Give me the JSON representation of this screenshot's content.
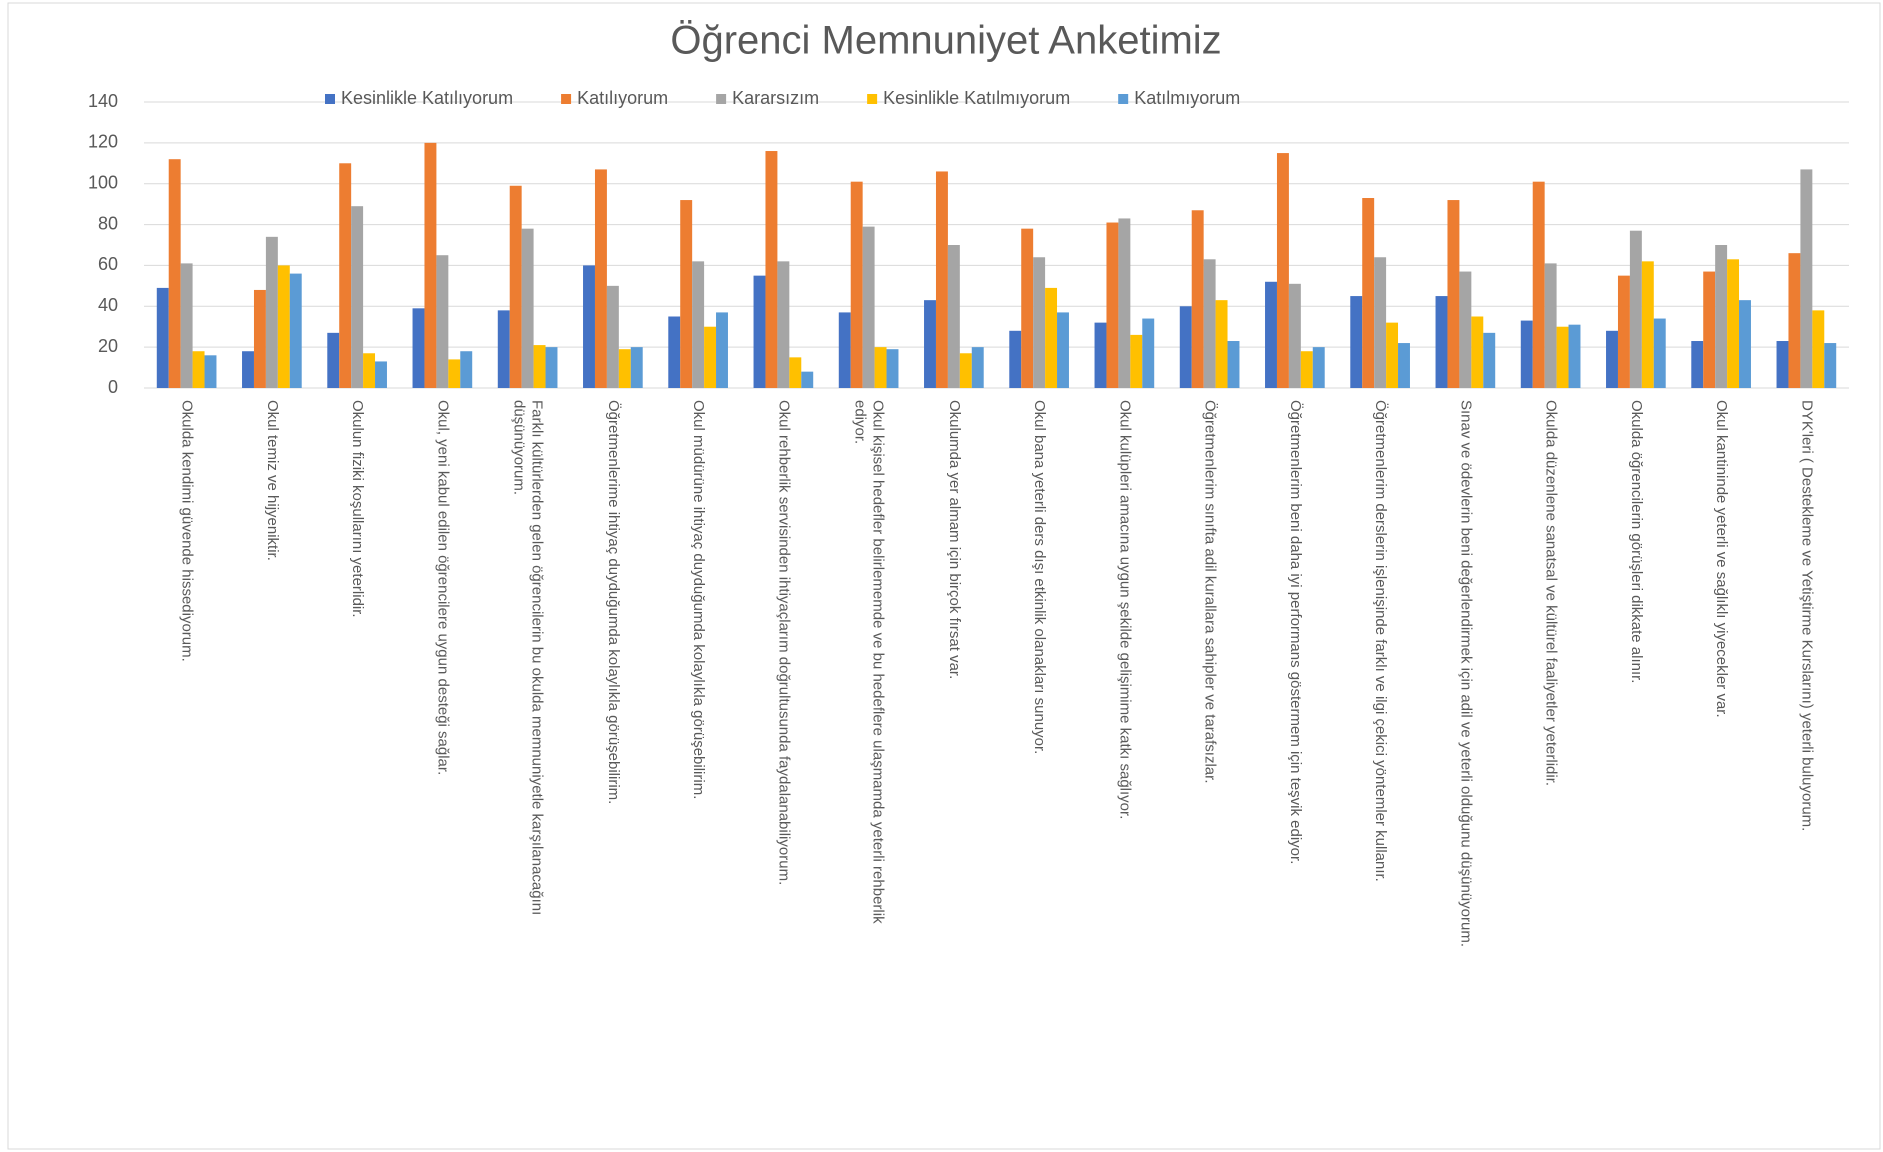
{
  "chart_data": {
    "type": "bar",
    "title": "Öğrenci Memnuniyet Anketimiz",
    "categories": [
      "Okulda kendimi güvende hissediyorum.",
      "Okul temiz ve hijyeniktir.",
      "Okulun fiziki koşullarını yeterlidir.",
      "Okul, yeni kabul edilen öğrencilere uygun desteği sağlar.",
      "Farklı kültürlerden gelen öğrencilerin bu okulda memnuniyetle karşılanacağını düşünüyorum.",
      "Öğretmenlerime ihtiyaç duyduğumda kolaylıkla görüşebilirim.",
      "Okul müdürüne ihtiyaç duyduğumda kolaylıkla görüşebilirim.",
      "Okul rehberlik servisinden ihtiyaçlarım doğrultusunda faydalanabiliyorum.",
      "Okul kişisel hedefler belirlememde ve bu hedeflere ulaşmamda yeterli rehberlik ediyor.",
      "Okulumda yer almam için birçok fırsat var.",
      "Okul bana yeterli ders dışı etkinlik olanakları sunuyor.",
      "Okul kulüpleri amacına uygun şekilde gelişimime katkı sağlıyor.",
      "Öğretmenlerim sınıfta adil kurallara sahipler ve tarafsızlar.",
      "Öğretmenlerim beni daha iyi performans göstermem için teşvik ediyor.",
      "Öğretmenlerim derslerin işlenişinde farklı ve ilgi çekici yöntemler kullanır.",
      "Sınav ve ödevlerin beni değerlendirmek için adil ve yeterli olduğunu düşünüyorum.",
      "Okulda düzenlene sanatsal ve kültürel faaliyetler yeterlidir.",
      "Okulda öğrencilerin görüşleri dikkate alınır.",
      "Okul kantininde yeterli ve sağlıklı yiyecekler var.",
      "DYK'leri ( Destekleme ve Yetiştirme Kurslarını) yeterli buluyorum."
    ],
    "series": [
      {
        "name": "Kesinlikle Katılıyorum",
        "color": "#4472c4",
        "values": [
          49,
          18,
          27,
          39,
          38,
          60,
          35,
          55,
          37,
          43,
          28,
          32,
          40,
          52,
          45,
          45,
          33,
          28,
          23,
          23
        ]
      },
      {
        "name": "Katılıyorum",
        "color": "#ed7d31",
        "values": [
          112,
          48,
          110,
          120,
          99,
          107,
          92,
          116,
          101,
          106,
          78,
          81,
          87,
          115,
          93,
          92,
          101,
          55,
          57,
          66
        ]
      },
      {
        "name": "Kararsızım",
        "color": "#a5a5a5",
        "values": [
          61,
          74,
          89,
          65,
          78,
          50,
          62,
          62,
          79,
          70,
          64,
          83,
          63,
          51,
          64,
          57,
          61,
          77,
          70,
          107
        ]
      },
      {
        "name": "Kesinlikle Katılmıyorum",
        "color": "#ffc000",
        "values": [
          18,
          60,
          17,
          14,
          21,
          19,
          30,
          15,
          20,
          17,
          49,
          26,
          43,
          18,
          32,
          35,
          30,
          62,
          63,
          38
        ]
      },
      {
        "name": "Katılmıyorum",
        "color": "#5b9bd5",
        "values": [
          16,
          56,
          13,
          18,
          20,
          20,
          37,
          8,
          19,
          20,
          37,
          34,
          23,
          20,
          22,
          27,
          31,
          34,
          43,
          22
        ]
      }
    ],
    "ylim": [
      0,
      140
    ],
    "yticks": [
      0,
      20,
      40,
      60,
      80,
      100,
      120,
      140
    ],
    "grid": true,
    "legend": "top"
  }
}
